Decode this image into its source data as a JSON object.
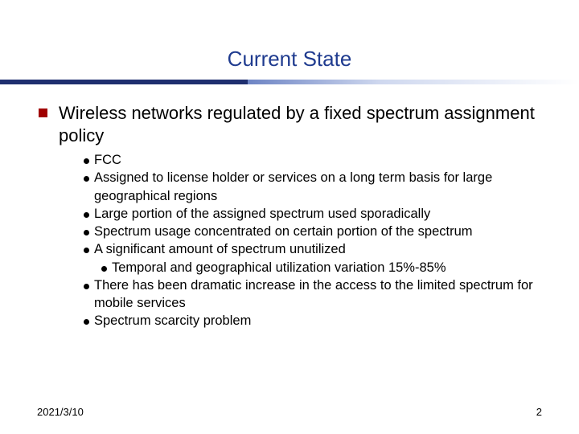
{
  "title": "Current State",
  "colors": {
    "title": "#1f3b8f",
    "rule_dark": "#1f2f6f",
    "square_bullet": "#a00000",
    "dot_bullet": "#000000",
    "text": "#000000",
    "background": "#ffffff"
  },
  "typography": {
    "title_fontsize": 26,
    "lvl1_fontsize": 22,
    "lvl2_fontsize": 16.5,
    "lvl3_fontsize": 16.5,
    "footer_fontsize": 13,
    "font_family": "Arial"
  },
  "bullets": {
    "lvl1": "Wireless networks regulated by a fixed spectrum assignment policy",
    "lvl2": [
      "FCC",
      "Assigned to license holder or services on a long term basis for large geographical regions",
      "Large portion of the assigned spectrum used sporadically",
      "Spectrum usage concentrated on certain portion of the spectrum",
      "A significant amount of spectrum unutilized",
      "There has been dramatic increase in the access to the limited spectrum for mobile services",
      "Spectrum scarcity problem"
    ],
    "lvl3_under_index": 4,
    "lvl3": "Temporal and geographical utilization variation 15%-85%"
  },
  "footer": {
    "date": "2021/3/10",
    "page": "2"
  }
}
